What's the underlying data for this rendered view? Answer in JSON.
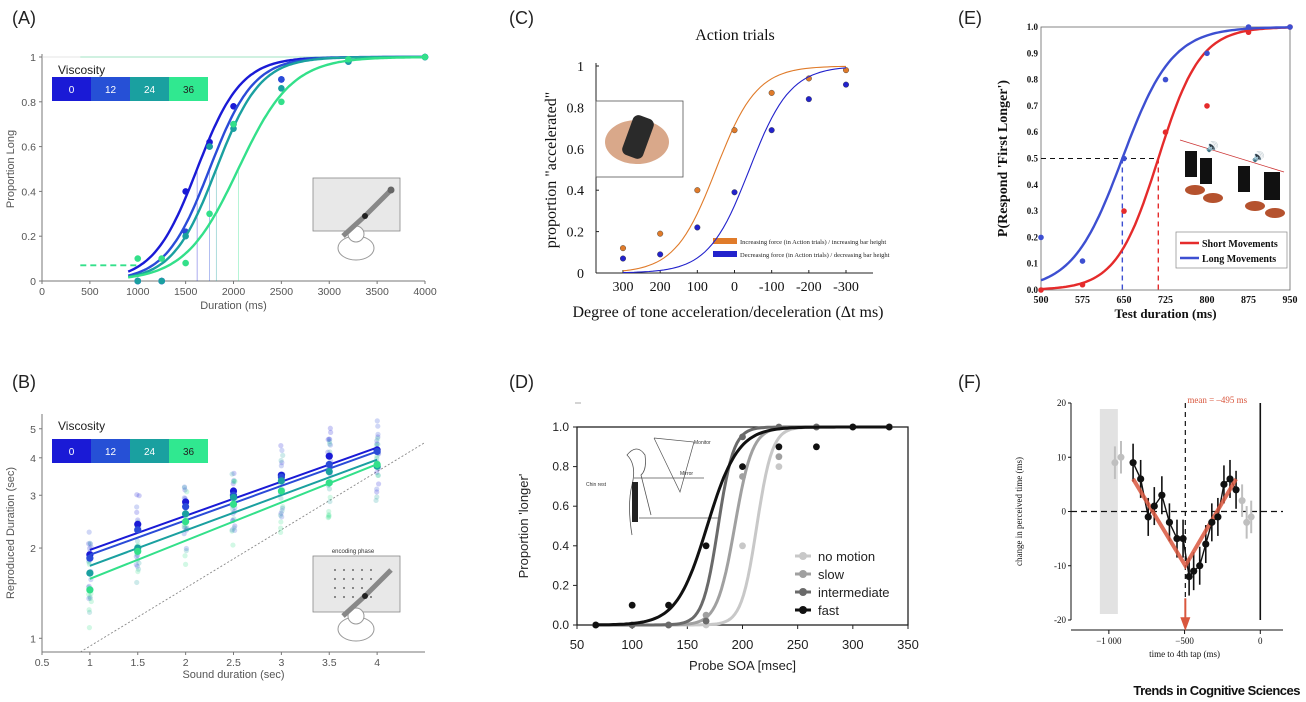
{
  "panel_labels": {
    "A": "(A)",
    "B": "(B)",
    "C": "(C)",
    "D": "(D)",
    "E": "(E)",
    "F": "(F)"
  },
  "brand": "Trends in Cognitive Sciences",
  "chart_data": [
    {
      "id": "A",
      "type": "line",
      "xlabel": "Duration (ms)",
      "ylabel": "Proportion Long",
      "xlim": [
        0,
        4000
      ],
      "ylim": [
        0,
        1
      ],
      "xticks": [
        0,
        500,
        1000,
        1500,
        2000,
        2500,
        3000,
        3500,
        4000
      ],
      "yticks": [
        0,
        0.2,
        0.4,
        0.6,
        0.8,
        1
      ],
      "legend_title": "Viscosity",
      "legend_values": [
        "0",
        "12",
        "24",
        "36"
      ],
      "series": [
        {
          "name": "0",
          "color": "#1a1ad6",
          "mu": 1620,
          "s": 230,
          "x": [
            1000,
            1250,
            1500,
            1750,
            2000,
            2500,
            3200,
            4000
          ],
          "y": [
            0.0,
            0.0,
            0.4,
            0.62,
            0.78,
            0.9,
            0.98,
            1.0
          ]
        },
        {
          "name": "12",
          "color": "#2a4bd8",
          "mu": 1750,
          "s": 230,
          "x": [
            1000,
            1250,
            1500,
            1750,
            2000,
            2500,
            3200,
            4000
          ],
          "y": [
            0.0,
            0.0,
            0.22,
            0.6,
            0.7,
            0.9,
            0.98,
            1.0
          ]
        },
        {
          "name": "24",
          "color": "#1aa0a0",
          "mu": 1820,
          "s": 230,
          "x": [
            1000,
            1250,
            1500,
            1750,
            2000,
            2500,
            3200,
            4000
          ],
          "y": [
            0.0,
            0.0,
            0.2,
            0.6,
            0.68,
            0.86,
            0.98,
            1.0
          ]
        },
        {
          "name": "36",
          "color": "#33e08a",
          "mu": 2050,
          "s": 280,
          "x": [
            1000,
            1250,
            1500,
            1750,
            2000,
            2500,
            3200,
            4000
          ],
          "y": [
            0.1,
            0.1,
            0.08,
            0.3,
            0.7,
            0.8,
            0.99,
            1.0
          ]
        }
      ]
    },
    {
      "id": "B",
      "type": "scatter",
      "xlabel": "Sound duration (sec)",
      "ylabel": "Reproduced Duration (sec)",
      "xlim": [
        0.5,
        4.5
      ],
      "ylim": [
        0.9,
        5.6
      ],
      "log_y": true,
      "xticks": [
        1,
        1.5,
        2,
        2.5,
        3,
        3.5,
        4
      ],
      "yticks": [
        1,
        2,
        3,
        4,
        5
      ],
      "legend_title": "Viscosity",
      "legend_values": [
        "0",
        "12",
        "24",
        "36"
      ],
      "inset_label": "encoding phase",
      "series": [
        {
          "name": "0",
          "color": "#1a1ad6",
          "x": [
            1,
            1.5,
            2,
            2.5,
            3,
            3.5,
            4
          ],
          "y": [
            1.9,
            2.4,
            2.85,
            3.1,
            3.5,
            4.05,
            4.25
          ]
        },
        {
          "name": "12",
          "color": "#2a4bd8",
          "x": [
            1,
            1.5,
            2,
            2.5,
            3,
            3.5,
            4
          ],
          "y": [
            1.85,
            2.3,
            2.75,
            3.0,
            3.45,
            3.8,
            4.2
          ]
        },
        {
          "name": "24",
          "color": "#1aa0a0",
          "x": [
            1,
            1.5,
            2,
            2.5,
            3,
            3.5,
            4
          ],
          "y": [
            1.65,
            2.0,
            2.6,
            2.95,
            3.35,
            3.6,
            3.75
          ]
        },
        {
          "name": "36",
          "color": "#33e08a",
          "x": [
            1,
            1.5,
            2,
            2.5,
            3,
            3.5,
            4
          ],
          "y": [
            1.45,
            1.95,
            2.45,
            2.8,
            3.1,
            3.3,
            3.8
          ]
        }
      ]
    },
    {
      "id": "C",
      "type": "line",
      "title": "Action trials",
      "xlabel": "Degree of tone acceleration/deceleration (Δt ms)",
      "ylabel": "proportion \"accelerated\"",
      "xlim": [
        300,
        -300
      ],
      "ylim": [
        0,
        1
      ],
      "xticks": [
        300,
        200,
        100,
        0,
        -100,
        -200,
        -300
      ],
      "xticklabels": [
        "300",
        "200",
        "100",
        "0",
        "-100",
        "-200",
        "-300"
      ],
      "yticks": [
        0,
        0.2,
        0.4,
        0.6,
        0.8,
        1
      ],
      "series": [
        {
          "name": "Increasing force (in Action trials) / increasing bar height",
          "color": "#e07b2a",
          "x": [
            300,
            200,
            100,
            0,
            -100,
            -200,
            -300
          ],
          "y": [
            0.12,
            0.19,
            0.4,
            0.69,
            0.87,
            0.94,
            0.98
          ]
        },
        {
          "name": "Decreasing force (in Action trials) / decreasing bar height",
          "color": "#2222cc",
          "x": [
            300,
            200,
            100,
            0,
            -100,
            -200,
            -300
          ],
          "y": [
            0.07,
            0.09,
            0.22,
            0.39,
            0.69,
            0.84,
            0.91
          ]
        }
      ]
    },
    {
      "id": "D",
      "type": "line",
      "xlabel": "Probe SOA [msec]",
      "ylabel": "Proportion 'longer'",
      "xlim": [
        50,
        350
      ],
      "ylim": [
        0,
        1
      ],
      "xticks": [
        50,
        100,
        150,
        200,
        250,
        300,
        350
      ],
      "yticks": [
        0,
        0.2,
        0.4,
        0.6,
        0.8,
        1
      ],
      "inset_labels": [
        "Monitor",
        "Chin rest",
        "Mirror"
      ],
      "series": [
        {
          "name": "no motion",
          "color": "#c8c8c8",
          "x": [
            67,
            100,
            133,
            167,
            200,
            233,
            267,
            300,
            333
          ],
          "y": [
            0,
            0,
            0,
            0,
            0.4,
            0.8,
            1,
            1,
            1
          ]
        },
        {
          "name": "slow",
          "color": "#a0a0a0",
          "x": [
            67,
            100,
            133,
            167,
            200,
            233,
            267,
            300,
            333
          ],
          "y": [
            0,
            0,
            0,
            0.05,
            0.75,
            0.85,
            1,
            1,
            1
          ]
        },
        {
          "name": "intermediate",
          "color": "#6a6a6a",
          "x": [
            67,
            100,
            133,
            167,
            200,
            233,
            267,
            300,
            333
          ],
          "y": [
            0,
            0,
            0,
            0.02,
            0.95,
            1,
            1,
            1,
            1
          ]
        },
        {
          "name": "fast",
          "color": "#111111",
          "x": [
            67,
            100,
            133,
            167,
            200,
            233,
            267,
            300,
            333
          ],
          "y": [
            0,
            0.1,
            0.1,
            0.4,
            0.8,
            0.9,
            0.9,
            1,
            1
          ]
        }
      ]
    },
    {
      "id": "E",
      "type": "line",
      "xlabel": "Test duration (ms)",
      "ylabel": "P(Respond 'First Longer')",
      "xlim": [
        500,
        950
      ],
      "ylim": [
        0,
        1
      ],
      "xticks": [
        500,
        575,
        650,
        725,
        800,
        875,
        950
      ],
      "yticks": [
        0,
        0.1,
        0.2,
        0.3,
        0.4,
        0.5,
        0.6,
        0.7,
        0.8,
        0.9,
        1.0
      ],
      "series": [
        {
          "name": "Short Movements",
          "color": "#e52b2b",
          "x": [
            500,
            575,
            650,
            725,
            800,
            875,
            950
          ],
          "y": [
            0,
            0.02,
            0.3,
            0.6,
            0.7,
            0.98,
            1.0
          ]
        },
        {
          "name": "Long Movements",
          "color": "#3d4fd1",
          "x": [
            500,
            575,
            650,
            725,
            800,
            875,
            950
          ],
          "y": [
            0.2,
            0.11,
            0.5,
            0.8,
            0.9,
            1.0,
            1.0
          ]
        }
      ]
    },
    {
      "id": "F",
      "type": "line",
      "xlabel": "time to 4th tap (ms)",
      "ylabel": "change in perceived time (ms)",
      "annotation": "mean = –495 ms",
      "xlim": [
        -1250,
        150
      ],
      "ylim": [
        -20,
        20
      ],
      "xticks": [
        -1000,
        -500,
        0
      ],
      "xticklabels": [
        "−1 000",
        "−500",
        "0"
      ],
      "yticks": [
        -20,
        -10,
        0,
        10,
        20
      ],
      "series": [
        {
          "name": "black",
          "color": "#111111",
          "x": [
            -840,
            -790,
            -740,
            -700,
            -650,
            -600,
            -550,
            -510,
            -470,
            -440,
            -400,
            -360,
            -320,
            -280,
            -240,
            -200,
            -160
          ],
          "y": [
            9,
            6,
            -1,
            1,
            3,
            -2,
            -5,
            -5,
            -12,
            -11,
            -10,
            -6,
            -2,
            -1,
            5,
            6,
            4
          ]
        },
        {
          "name": "grey",
          "color": "#bfbfbf",
          "x": [
            -960,
            -920,
            -120,
            -90,
            -60
          ],
          "y": [
            9,
            10,
            2,
            -2,
            -1
          ]
        }
      ]
    }
  ]
}
